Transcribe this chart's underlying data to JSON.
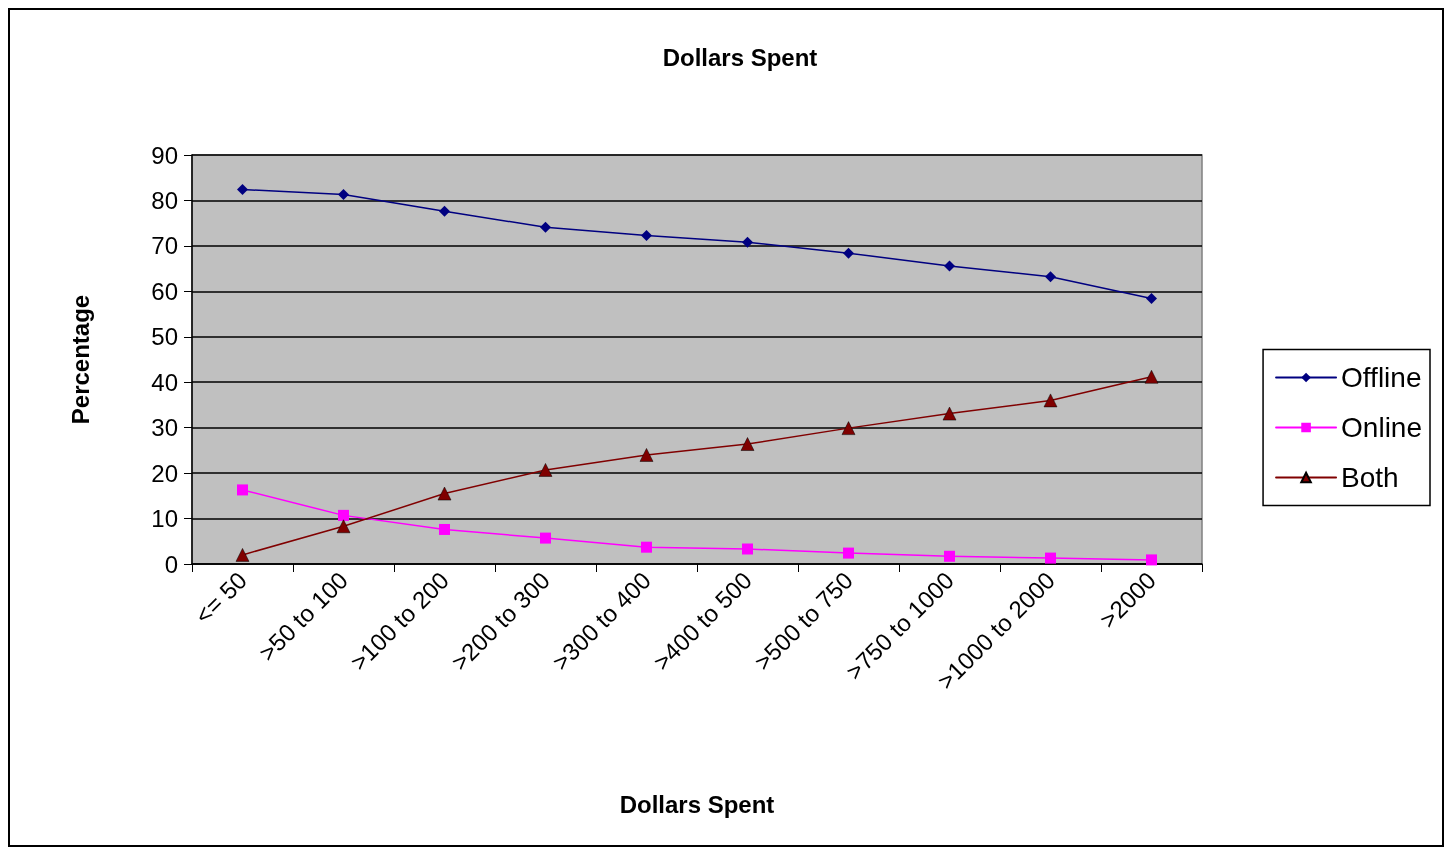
{
  "chart_data": {
    "type": "line",
    "title": "Dollars Spent",
    "xlabel": "Dollars Spent",
    "ylabel": "Percentage",
    "categories": [
      "<= 50",
      ">50 to 100",
      ">100 to 200",
      ">200 to 300",
      ">300 to 400",
      ">400 to 500",
      ">500 to 750",
      ">750 to 1000",
      ">1000 to 2000",
      ">2000"
    ],
    "series": [
      {
        "name": "Offline",
        "color": "#000080",
        "marker": "diamond",
        "values": [
          82.4,
          81.3,
          77.6,
          74.1,
          72.3,
          70.8,
          68.4,
          65.6,
          63.2,
          58.4
        ]
      },
      {
        "name": "Online",
        "color": "#ff00ff",
        "marker": "square",
        "values": [
          16.3,
          10.7,
          7.6,
          5.7,
          3.7,
          3.3,
          2.4,
          1.7,
          1.3,
          0.9
        ]
      },
      {
        "name": "Both",
        "color": "#800000",
        "marker": "triangle",
        "values": [
          2.0,
          8.3,
          15.5,
          20.7,
          24.0,
          26.4,
          29.9,
          33.1,
          36.0,
          41.2
        ]
      }
    ],
    "ylim": [
      0,
      90
    ],
    "yticks": [
      0,
      10,
      20,
      30,
      40,
      50,
      60,
      70,
      80,
      90
    ],
    "grid": "y",
    "legend": "right",
    "line_style": "solid"
  }
}
